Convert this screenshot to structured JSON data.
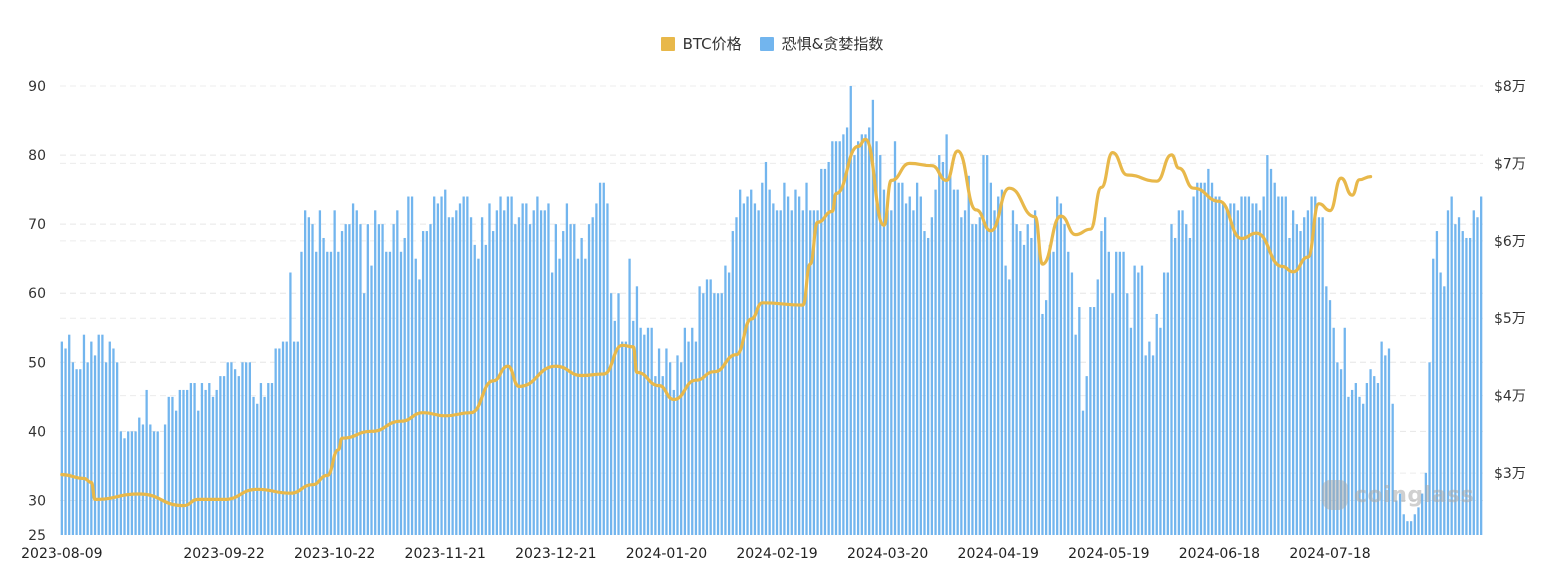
{
  "legend": {
    "items": [
      {
        "label": "BTC价格",
        "color": "#E8B84A"
      },
      {
        "label": "恐惧&贪婪指数",
        "color": "#72B5EE"
      }
    ]
  },
  "watermark": "coinglass",
  "chart_data": {
    "type": "bar+line",
    "title": "",
    "legend_position": "top-center",
    "grid": true,
    "left_axis": {
      "label": "恐惧&贪婪指数",
      "ticks": [
        25,
        30,
        40,
        50,
        60,
        70,
        80,
        90
      ],
      "range": [
        25,
        90
      ]
    },
    "right_axis": {
      "label": "BTC价格",
      "ticks": [
        "$3万",
        "$4万",
        "$5万",
        "$6万",
        "$7万",
        "$8万"
      ],
      "tick_values": [
        30000,
        40000,
        50000,
        60000,
        70000,
        80000
      ],
      "range": [
        22000,
        80000
      ]
    },
    "x_ticks": [
      "2023-08-09",
      "2023-09-22",
      "2023-10-22",
      "2023-11-21",
      "2023-12-21",
      "2024-01-20",
      "2024-02-19",
      "2024-03-20",
      "2024-04-19",
      "2024-05-19",
      "2024-06-18",
      "2024-07-18"
    ],
    "x_start": "2023-08-09",
    "x_end": "2024-07-29",
    "series": [
      {
        "name": "恐惧&贪婪指数",
        "type": "bar",
        "color": "#72B5EE",
        "values": [
          53,
          52,
          54,
          50,
          49,
          49,
          54,
          50,
          53,
          51,
          54,
          54,
          50,
          53,
          52,
          50,
          40,
          39,
          40,
          40,
          40,
          42,
          41,
          46,
          41,
          40,
          40,
          30,
          41,
          45,
          45,
          43,
          46,
          46,
          46,
          47,
          47,
          43,
          47,
          46,
          47,
          45,
          46,
          48,
          48,
          50,
          50,
          49,
          48,
          50,
          50,
          50,
          45,
          44,
          47,
          45,
          47,
          47,
          52,
          52,
          53,
          53,
          63,
          53,
          53,
          66,
          72,
          71,
          70,
          66,
          72,
          68,
          66,
          66,
          72,
          66,
          69,
          70,
          70,
          73,
          72,
          70,
          60,
          70,
          64,
          72,
          70,
          70,
          66,
          66,
          70,
          72,
          66,
          68,
          74,
          74,
          65,
          62,
          69,
          69,
          70,
          74,
          73,
          74,
          75,
          71,
          71,
          72,
          73,
          74,
          74,
          71,
          67,
          65,
          71,
          67,
          73,
          69,
          72,
          74,
          72,
          74,
          74,
          70,
          71,
          73,
          73,
          70,
          72,
          74,
          72,
          72,
          73,
          63,
          70,
          65,
          69,
          73,
          70,
          70,
          65,
          68,
          65,
          70,
          71,
          73,
          76,
          76,
          73,
          60,
          56,
          60,
          53,
          53,
          65,
          56,
          61,
          55,
          54,
          55,
          55,
          48,
          52,
          48,
          52,
          50,
          46,
          51,
          50,
          55,
          53,
          55,
          53,
          61,
          60,
          62,
          62,
          60,
          60,
          60,
          64,
          63,
          69,
          71,
          75,
          73,
          74,
          75,
          73,
          72,
          76,
          79,
          75,
          73,
          72,
          72,
          76,
          74,
          72,
          75,
          74,
          72,
          76,
          72,
          72,
          72,
          78,
          78,
          79,
          82,
          82,
          82,
          83,
          84,
          90,
          80,
          82,
          83,
          83,
          84,
          88,
          82,
          80,
          75,
          72,
          72,
          82,
          76,
          76,
          73,
          74,
          72,
          76,
          74,
          69,
          68,
          71,
          75,
          80,
          79,
          83,
          77,
          75,
          75,
          71,
          72,
          77,
          70,
          70,
          71,
          80,
          80,
          76,
          72,
          74,
          75,
          64,
          62,
          72,
          70,
          69,
          67,
          70,
          68,
          72,
          68,
          57,
          59,
          67,
          66,
          74,
          73,
          70,
          66,
          63,
          54,
          58,
          43,
          48,
          58,
          58,
          62,
          69,
          71,
          66,
          60,
          66,
          66,
          66,
          60,
          55,
          64,
          63,
          64,
          51,
          53,
          51,
          57,
          55,
          63,
          63,
          70,
          68,
          72,
          72,
          70,
          68,
          74,
          76,
          76,
          76,
          78,
          76,
          74,
          74,
          73,
          72,
          73,
          73,
          72,
          74,
          74,
          74,
          73,
          73,
          72,
          74,
          80,
          78,
          76,
          74,
          74,
          74,
          68,
          72,
          70,
          69,
          71,
          72,
          74,
          74,
          71,
          71,
          61,
          59,
          55,
          50,
          49,
          55,
          45,
          46,
          47,
          45,
          44,
          47,
          49,
          48,
          47,
          53,
          51,
          52,
          44,
          30,
          31,
          28,
          27,
          27,
          28,
          29,
          31,
          34,
          50,
          65,
          69,
          63,
          61,
          72,
          74,
          70,
          71,
          69,
          68,
          68,
          72,
          71,
          74
        ]
      },
      {
        "name": "BTC价格",
        "type": "line",
        "color": "#E8B84A",
        "unit": "USD",
        "sampled_points": [
          [
            "2023-08-09",
            29800
          ],
          [
            "2023-08-15",
            29300
          ],
          [
            "2023-08-17",
            28800
          ],
          [
            "2023-08-18",
            26600
          ],
          [
            "2023-08-30",
            27300
          ],
          [
            "2023-09-11",
            25800
          ],
          [
            "2023-09-15",
            26600
          ],
          [
            "2023-09-22",
            26600
          ],
          [
            "2023-10-01",
            27900
          ],
          [
            "2023-10-10",
            27400
          ],
          [
            "2023-10-16",
            28500
          ],
          [
            "2023-10-20",
            29700
          ],
          [
            "2023-10-23",
            33000
          ],
          [
            "2023-10-24",
            34500
          ],
          [
            "2023-11-01",
            35400
          ],
          [
            "2023-11-09",
            36700
          ],
          [
            "2023-11-15",
            37800
          ],
          [
            "2023-11-21",
            37400
          ],
          [
            "2023-11-28",
            37800
          ],
          [
            "2023-12-04",
            41900
          ],
          [
            "2023-12-08",
            43800
          ],
          [
            "2023-12-11",
            41200
          ],
          [
            "2023-12-21",
            43800
          ],
          [
            "2023-12-28",
            42600
          ],
          [
            "2024-01-03",
            42800
          ],
          [
            "2024-01-08",
            46500
          ],
          [
            "2024-01-11",
            46300
          ],
          [
            "2024-01-12",
            43000
          ],
          [
            "2024-01-18",
            41300
          ],
          [
            "2024-01-22",
            39500
          ],
          [
            "2024-01-28",
            42000
          ],
          [
            "2024-02-02",
            43100
          ],
          [
            "2024-02-08",
            45300
          ],
          [
            "2024-02-12",
            49900
          ],
          [
            "2024-02-15",
            52000
          ],
          [
            "2024-02-26",
            51700
          ],
          [
            "2024-02-28",
            57000
          ],
          [
            "2024-03-01",
            62400
          ],
          [
            "2024-03-05",
            63800
          ],
          [
            "2024-03-06",
            66100
          ],
          [
            "2024-03-12",
            72200
          ],
          [
            "2024-03-14",
            73100
          ],
          [
            "2024-03-19",
            62000
          ],
          [
            "2024-03-21",
            67800
          ],
          [
            "2024-03-26",
            70000
          ],
          [
            "2024-04-01",
            69700
          ],
          [
            "2024-04-05",
            67800
          ],
          [
            "2024-04-08",
            71600
          ],
          [
            "2024-04-13",
            64000
          ],
          [
            "2024-04-17",
            61300
          ],
          [
            "2024-04-22",
            66800
          ],
          [
            "2024-04-29",
            63100
          ],
          [
            "2024-05-01",
            57000
          ],
          [
            "2024-05-06",
            63200
          ],
          [
            "2024-05-10",
            60800
          ],
          [
            "2024-05-14",
            61500
          ],
          [
            "2024-05-17",
            66900
          ],
          [
            "2024-05-20",
            71400
          ],
          [
            "2024-05-24",
            68500
          ],
          [
            "2024-06-01",
            67700
          ],
          [
            "2024-06-05",
            71100
          ],
          [
            "2024-06-07",
            69400
          ],
          [
            "2024-06-11",
            66800
          ],
          [
            "2024-06-18",
            65100
          ],
          [
            "2024-06-24",
            60300
          ],
          [
            "2024-06-28",
            61000
          ],
          [
            "2024-07-05",
            56700
          ],
          [
            "2024-07-08",
            56000
          ],
          [
            "2024-07-12",
            57900
          ],
          [
            "2024-07-15",
            64800
          ],
          [
            "2024-07-18",
            63900
          ],
          [
            "2024-07-21",
            68100
          ],
          [
            "2024-07-24",
            65900
          ],
          [
            "2024-07-26",
            67900
          ],
          [
            "2024-07-29",
            68300
          ]
        ]
      }
    ]
  }
}
